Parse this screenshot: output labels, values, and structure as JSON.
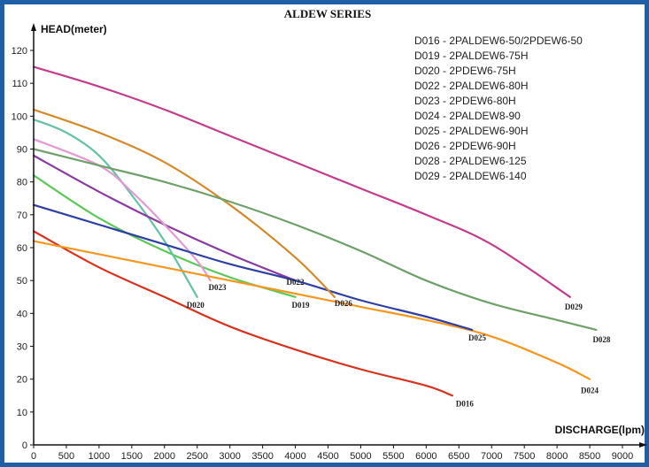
{
  "chart_data": {
    "type": "line",
    "title": "ALDEW SERIES",
    "xlabel": "DISCHARGE(lpm)",
    "ylabel": "HEAD(meter)",
    "xlim": [
      0,
      9000
    ],
    "ylim": [
      0,
      120
    ],
    "x_ticks": [
      0,
      500,
      1000,
      1500,
      2000,
      2500,
      3000,
      3500,
      4000,
      4500,
      5000,
      5500,
      6000,
      6500,
      7000,
      7500,
      8000,
      8500,
      9000
    ],
    "y_ticks": [
      0,
      10,
      20,
      30,
      40,
      50,
      60,
      70,
      80,
      90,
      100,
      110,
      120
    ],
    "grid": false,
    "legend_position": "top-right",
    "legend": [
      "D016 - 2PALDEW6-50/2PDEW6-50",
      "D019 - 2PALDEW6-75H",
      "D020 - 2PDEW6-75H",
      "D022 - 2PALDEW6-80H",
      "D023 - 2PDEW6-80H",
      "D024 - 2PALDEW8-90",
      "D025 - 2PALDEW6-90H",
      "D026 - 2PDEW6-90H",
      "D028 - 2PALDEW6-125",
      "D029 - 2PALDEW6-140"
    ],
    "series": [
      {
        "name": "D016",
        "color": "#d8321e",
        "x": [
          0,
          1000,
          2000,
          3000,
          4000,
          5000,
          6000,
          6400
        ],
        "y": [
          65,
          54,
          45,
          36,
          29,
          23,
          18,
          15
        ]
      },
      {
        "name": "D019",
        "color": "#5cc85a",
        "x": [
          0,
          1000,
          2000,
          3000,
          4000
        ],
        "y": [
          82,
          69,
          59,
          51,
          45
        ]
      },
      {
        "name": "D020",
        "color": "#63c2a6",
        "x": [
          0,
          500,
          1000,
          1500,
          2000,
          2500
        ],
        "y": [
          99,
          95,
          88,
          76,
          62,
          45
        ]
      },
      {
        "name": "D022",
        "color": "#8a3aa0",
        "x": [
          0,
          1000,
          2000,
          3000,
          4000
        ],
        "y": [
          88,
          77,
          67,
          58,
          50
        ]
      },
      {
        "name": "D023",
        "color": "#e49ad0",
        "x": [
          0,
          1000,
          1500,
          2000,
          2500,
          2700
        ],
        "y": [
          93,
          85,
          77,
          67,
          56,
          50
        ]
      },
      {
        "name": "D024",
        "color": "#f5961e",
        "x": [
          0,
          1000,
          2000,
          3000,
          4000,
          5000,
          6000,
          7000,
          8000,
          8500
        ],
        "y": [
          62,
          58,
          54,
          50,
          46,
          42,
          38,
          33,
          25,
          20
        ]
      },
      {
        "name": "D025",
        "color": "#2e3fa4",
        "x": [
          0,
          1000,
          2000,
          3000,
          4000,
          5000,
          6000,
          6700
        ],
        "y": [
          73,
          67,
          61,
          55,
          50,
          44,
          39,
          35
        ]
      },
      {
        "name": "D026",
        "color": "#d48a2a",
        "x": [
          0,
          1000,
          2000,
          3000,
          4000,
          4600
        ],
        "y": [
          102,
          95,
          86,
          73,
          57,
          45
        ]
      },
      {
        "name": "D028",
        "color": "#6ea06a",
        "x": [
          0,
          1000,
          2000,
          3000,
          4000,
          5000,
          6000,
          7000,
          8000,
          8600
        ],
        "y": [
          90,
          85,
          80,
          74,
          67,
          59,
          50,
          43,
          38,
          35
        ]
      },
      {
        "name": "D029",
        "color": "#c43d8c",
        "x": [
          0,
          1000,
          2000,
          3000,
          4000,
          5000,
          6000,
          7000,
          8200
        ],
        "y": [
          115,
          109,
          102,
          94,
          86,
          78,
          70,
          61,
          45
        ]
      }
    ]
  }
}
